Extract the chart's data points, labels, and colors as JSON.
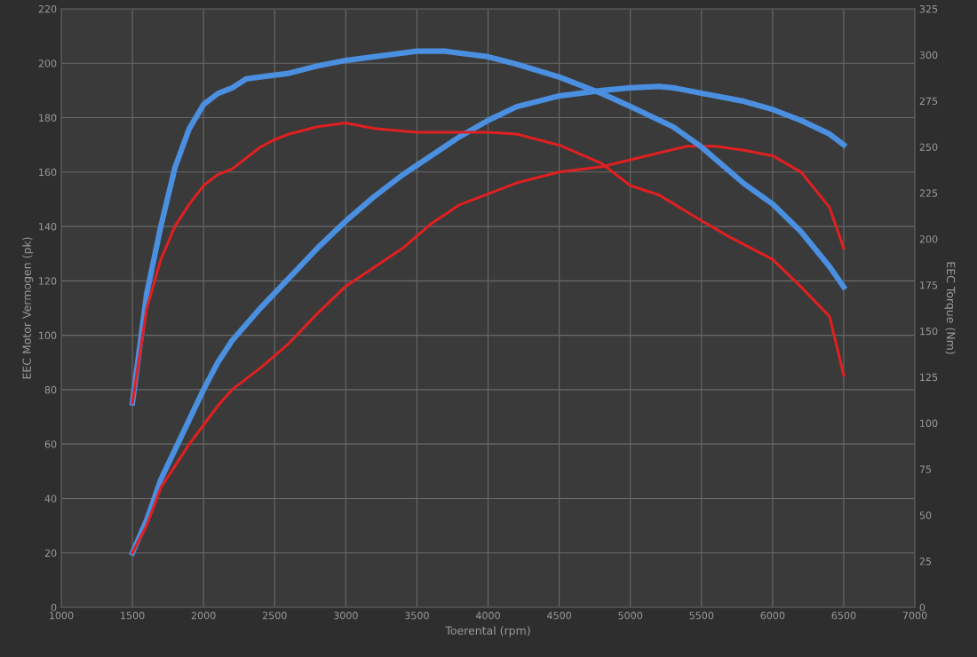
{
  "chart_data": {
    "type": "line",
    "xlabel": "Toerental (rpm)",
    "ylabel": "EEC Motor Vermogen (pk)",
    "y2label": "EEC Torque (Nm)",
    "xlim": [
      1000,
      7000
    ],
    "xticks": [
      1000,
      1500,
      2000,
      2500,
      3000,
      3500,
      4000,
      4500,
      5000,
      5500,
      6000,
      6500,
      7000
    ],
    "ylim": [
      0,
      220
    ],
    "yticks": [
      0,
      20,
      40,
      60,
      80,
      100,
      120,
      140,
      160,
      180,
      200,
      220
    ],
    "y2lim": [
      0,
      325
    ],
    "y2ticks": [
      0,
      25,
      50,
      75,
      100,
      125,
      150,
      175,
      200,
      225,
      250,
      275,
      300,
      325
    ],
    "grid": true,
    "legend": false,
    "series": [
      {
        "color": "#4a8fe0",
        "x": [
          1500,
          1600,
          1700,
          1800,
          1900,
          2000,
          2100,
          2200,
          2400,
          2600,
          2800,
          3000,
          3200,
          3400,
          3600,
          3800,
          4000,
          4200,
          4500,
          4800,
          5000,
          5200,
          5300,
          5500,
          5800,
          6000,
          6200,
          6400,
          6500
        ],
        "values": [
          20,
          32,
          47,
          58,
          69,
          80,
          90,
          98,
          110,
          121,
          132,
          142,
          151,
          159,
          166,
          173,
          179,
          184,
          188,
          190,
          191,
          191.5,
          191,
          189,
          186,
          183,
          179,
          174,
          170
        ]
      },
      {
        "color": "#e02020",
        "x": [
          1500,
          1600,
          1700,
          1800,
          1900,
          2000,
          2100,
          2200,
          2400,
          2600,
          2800,
          3000,
          3200,
          3400,
          3600,
          3800,
          4000,
          4200,
          4500,
          4800,
          5000,
          5200,
          5400,
          5600,
          5800,
          6000,
          6200,
          6400,
          6500
        ],
        "values": [
          20,
          30,
          44,
          52,
          60,
          67,
          74,
          80,
          88,
          97,
          108,
          118,
          125,
          132,
          141,
          148,
          152,
          156,
          160,
          162,
          164.5,
          167,
          169.5,
          169.5,
          168,
          166,
          160,
          147,
          132
        ]
      },
      {
        "color": "#4a8fe0",
        "axis": "y2",
        "x": [
          1500,
          1600,
          1700,
          1800,
          1900,
          2000,
          2100,
          2200,
          2300,
          2400,
          2500,
          2600,
          2800,
          3000,
          3200,
          3500,
          3700,
          4000,
          4200,
          4500,
          4800,
          5000,
          5300,
          5500,
          5800,
          6000,
          6200,
          6400,
          6500
        ],
        "values": [
          111,
          170,
          207,
          239,
          260,
          273,
          279,
          282,
          287,
          288,
          289,
          290,
          294,
          297,
          299,
          302,
          302,
          299,
          295,
          288,
          279,
          272,
          261,
          250,
          230,
          219,
          204,
          185,
          174
        ]
      },
      {
        "color": "#e02020",
        "axis": "y2",
        "x": [
          1500,
          1600,
          1700,
          1800,
          1900,
          2000,
          2100,
          2200,
          2300,
          2400,
          2500,
          2600,
          2800,
          3000,
          3200,
          3500,
          3800,
          4000,
          4200,
          4500,
          4800,
          5000,
          5200,
          5500,
          5700,
          6000,
          6200,
          6400,
          6500
        ],
        "values": [
          111,
          162,
          189,
          207,
          219,
          229,
          235,
          238,
          244,
          250,
          254,
          257,
          261,
          263,
          260,
          258,
          258,
          258,
          257,
          251,
          241,
          229,
          224,
          210,
          201,
          189,
          174,
          158,
          126
        ]
      }
    ]
  }
}
